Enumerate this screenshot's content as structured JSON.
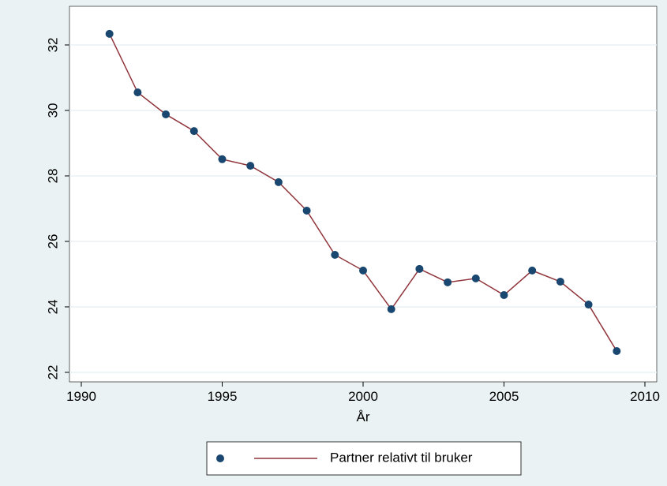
{
  "chart_data": {
    "type": "line",
    "x_label": "År",
    "x": [
      1991,
      1992,
      1993,
      1994,
      1995,
      1996,
      1997,
      1998,
      1999,
      2000,
      2001,
      2002,
      2003,
      2004,
      2005,
      2006,
      2007,
      2008,
      2009
    ],
    "series": [
      {
        "name": "Partner relativt til bruker",
        "color": "#90353b",
        "marker_color": "#1a476f",
        "values": [
          32.34,
          30.55,
          29.88,
          29.37,
          28.51,
          28.31,
          27.81,
          26.94,
          25.59,
          25.11,
          23.93,
          25.16,
          24.75,
          24.87,
          24.36,
          25.11,
          24.77,
          24.07,
          22.65
        ]
      }
    ],
    "xlim": [
      1989.58,
      2010.42
    ],
    "xticks": [
      1990,
      1995,
      2000,
      2005,
      2010
    ],
    "ylim": [
      21.71,
      33.18
    ],
    "yticks": [
      22,
      24,
      26,
      28,
      30,
      32
    ],
    "grid": true,
    "legend": "bottom"
  }
}
